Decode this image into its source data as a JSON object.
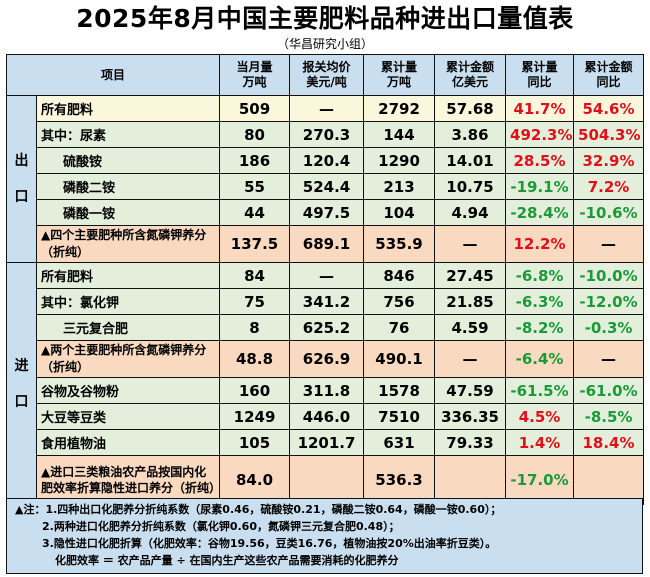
{
  "title": "2025年8月中国主要肥料品种进出口量值表",
  "subtitle": "（华昌研究小组）",
  "headers": {
    "item": "项目",
    "month_qty": [
      "当月量",
      "万吨"
    ],
    "price": [
      "报关均价",
      "美元/吨"
    ],
    "cum_qty": [
      "累计量",
      "万吨"
    ],
    "cum_amt": [
      "累计金额",
      "亿美元"
    ],
    "cum_qty_yoy": [
      "累计量",
      "同比"
    ],
    "cum_amt_yoy": [
      "累计金额",
      "同比"
    ]
  },
  "export": {
    "label": "出口",
    "rows": [
      {
        "name": "所有肥料",
        "c1": "509",
        "c2": "—",
        "c3": "2792",
        "c4": "57.68",
        "c5": "41.7%",
        "c6": "54.6%"
      },
      {
        "name": "其中：尿素",
        "c1": "80",
        "c2": "270.3",
        "c3": "144",
        "c4": "3.86",
        "c5": "492.3%",
        "c6": "504.3%"
      },
      {
        "name": "硫酸铵",
        "c1": "186",
        "c2": "120.4",
        "c3": "1290",
        "c4": "14.01",
        "c5": "28.5%",
        "c6": "32.9%"
      },
      {
        "name": "磷酸二铵",
        "c1": "55",
        "c2": "524.4",
        "c3": "213",
        "c4": "10.75",
        "c5": "-19.1%",
        "c6": "7.2%"
      },
      {
        "name": "磷酸一铵",
        "c1": "44",
        "c2": "497.5",
        "c3": "104",
        "c4": "4.94",
        "c5": "-28.4%",
        "c6": "-10.6%"
      },
      {
        "name": "▲四个主要肥种所含氮磷钾养分（折纯）",
        "c1": "137.5",
        "c2": "689.1",
        "c3": "535.9",
        "c4": "—",
        "c5": "12.2%",
        "c6": "—"
      }
    ]
  },
  "import": {
    "label": "进口",
    "rows": [
      {
        "name": "所有肥料",
        "c1": "84",
        "c2": "—",
        "c3": "846",
        "c4": "27.45",
        "c5": "-6.8%",
        "c6": "-10.0%"
      },
      {
        "name": "其中：氯化钾",
        "c1": "75",
        "c2": "341.2",
        "c3": "756",
        "c4": "21.85",
        "c5": "-6.3%",
        "c6": "-12.0%"
      },
      {
        "name": "三元复合肥",
        "c1": "8",
        "c2": "625.2",
        "c3": "76",
        "c4": "4.59",
        "c5": "-8.2%",
        "c6": "-0.3%"
      },
      {
        "name": "▲两个主要肥种所含氮磷钾养分（折纯）",
        "c1": "48.8",
        "c2": "626.9",
        "c3": "490.1",
        "c4": "—",
        "c5": "-6.4%",
        "c6": "—"
      },
      {
        "name": "谷物及谷物粉",
        "c1": "160",
        "c2": "311.8",
        "c3": "1578",
        "c4": "47.59",
        "c5": "-61.5%",
        "c6": "-61.0%"
      },
      {
        "name": "大豆等豆类",
        "c1": "1249",
        "c2": "446.0",
        "c3": "7510",
        "c4": "336.35",
        "c5": "4.5%",
        "c6": "-8.5%"
      },
      {
        "name": "食用植物油",
        "c1": "105",
        "c2": "1201.7",
        "c3": "631",
        "c4": "79.33",
        "c5": "1.4%",
        "c6": "18.4%"
      },
      {
        "name": "▲进口三类粮油农产品按国内化肥效率折算隐性进口养分（折纯）",
        "c1": "84.0",
        "c2": "",
        "c3": "536.3",
        "c4": "",
        "c5": "-17.0%",
        "c6": ""
      }
    ]
  },
  "notes": [
    "▲注：1.四种出口化肥养分折纯系数（尿素0.46，硫酸铵0.21，磷酸二铵0.64，磷酸一铵0.60）；",
    "2.两种进口化肥养分折纯系数（氯化钾0.60，氮磷钾三元复合肥0.48）；",
    "3.隐性进口化肥折算（化肥效率：谷物19.56，豆类16.76，植物油按20%出油率折豆类）。",
    "化肥效率 ＝ 农产品产量 ÷ 在国内生产这些农产品需要消耗的化肥养分"
  ],
  "colors": {
    "red": "#e0101b",
    "green": "#1a9a3a",
    "header_bg": "#c9dff0",
    "yellow": "#fbf7dd",
    "green_bg": "#e3efda",
    "orange": "#f9d9bf"
  }
}
